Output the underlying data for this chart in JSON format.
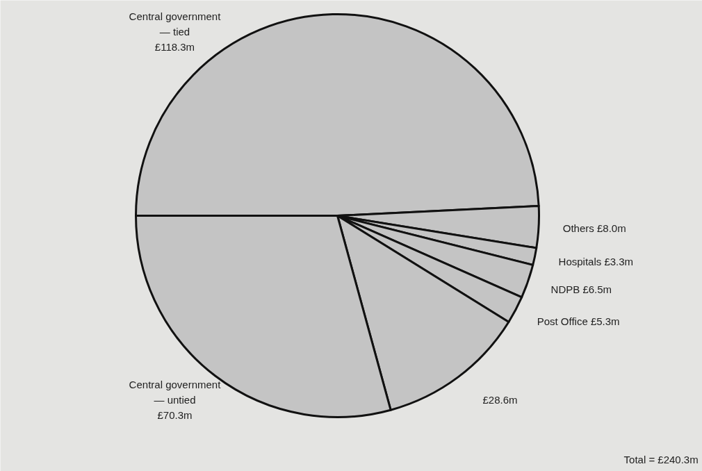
{
  "chart_data": {
    "type": "pie",
    "categories": [
      "Central government\n— tied",
      "Others",
      "Hospitals",
      "NDPB",
      "Post Office",
      null,
      "Central government\n— untied"
    ],
    "values": [
      118.3,
      8.0,
      3.3,
      6.5,
      5.3,
      28.6,
      70.3
    ],
    "value_labels": [
      "£118.3m",
      "£8.0m",
      "£3.3m",
      "£6.5m",
      "£5.3m",
      "£28.6m",
      "£70.3m"
    ],
    "colors": [
      "#c4c4c4",
      "#c4c4c4",
      "#c4c4c4",
      "#c4c4c4",
      "#c4c4c4",
      "#c4c4c4",
      "#c4c4c4"
    ],
    "annotations": [
      "Total = £240.3m"
    ]
  }
}
